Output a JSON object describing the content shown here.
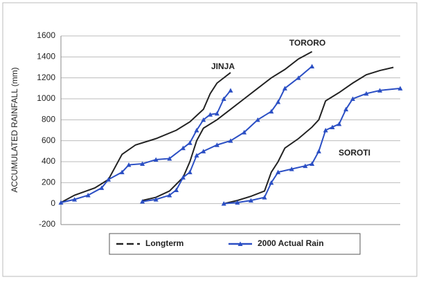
{
  "chart_data": {
    "type": "line",
    "y_label": "ACCUMULATED RAINFALL (mm)",
    "annotations": [
      "JINJA",
      "TORORO",
      "SOROTI"
    ],
    "xlim": [
      0,
      100
    ],
    "ylim": [
      -200,
      1600
    ],
    "yticks": [
      -200,
      0,
      200,
      400,
      600,
      800,
      1000,
      1200,
      1400,
      1600
    ],
    "grid": true,
    "legend": "bottom",
    "series": [
      {
        "name": "Longterm",
        "color": "#222222",
        "dash": true,
        "x": [
          0,
          4,
          10,
          14,
          16,
          18,
          22,
          28,
          34,
          38,
          42,
          44,
          46,
          50,
          null,
          24,
          28,
          32,
          36,
          38,
          40,
          42,
          46,
          50,
          54,
          58,
          62,
          66,
          70,
          74,
          null,
          48,
          52,
          56,
          60,
          62,
          64,
          66,
          70,
          74,
          76,
          78,
          82,
          86,
          90,
          94,
          98
        ],
        "values": [
          10,
          80,
          150,
          230,
          350,
          470,
          560,
          620,
          700,
          780,
          900,
          1050,
          1150,
          1250,
          null,
          30,
          60,
          120,
          250,
          400,
          600,
          720,
          800,
          900,
          1000,
          1100,
          1200,
          1280,
          1380,
          1450,
          null,
          0,
          30,
          70,
          120,
          300,
          400,
          530,
          620,
          730,
          800,
          980,
          1060,
          1150,
          1230,
          1270,
          1300
        ]
      },
      {
        "name": "2000 Actual Rain",
        "color": "#2b4fc4",
        "dash": false,
        "x": [
          0,
          4,
          8,
          12,
          14,
          18,
          20,
          24,
          28,
          32,
          36,
          38,
          40,
          42,
          44,
          46,
          48,
          50,
          null,
          24,
          28,
          32,
          34,
          36,
          38,
          40,
          42,
          46,
          50,
          54,
          58,
          62,
          64,
          66,
          70,
          74,
          null,
          48,
          52,
          56,
          60,
          62,
          64,
          68,
          72,
          74,
          76,
          78,
          80,
          82,
          84,
          86,
          90,
          94,
          100
        ],
        "values": [
          10,
          40,
          80,
          150,
          230,
          300,
          370,
          380,
          420,
          430,
          530,
          580,
          700,
          800,
          850,
          860,
          1000,
          1080,
          null,
          20,
          40,
          80,
          130,
          250,
          300,
          460,
          500,
          560,
          600,
          680,
          800,
          880,
          970,
          1100,
          1200,
          1310,
          null,
          0,
          10,
          30,
          60,
          200,
          300,
          330,
          360,
          380,
          500,
          700,
          730,
          760,
          900,
          1000,
          1050,
          1080,
          1100
        ]
      }
    ]
  }
}
